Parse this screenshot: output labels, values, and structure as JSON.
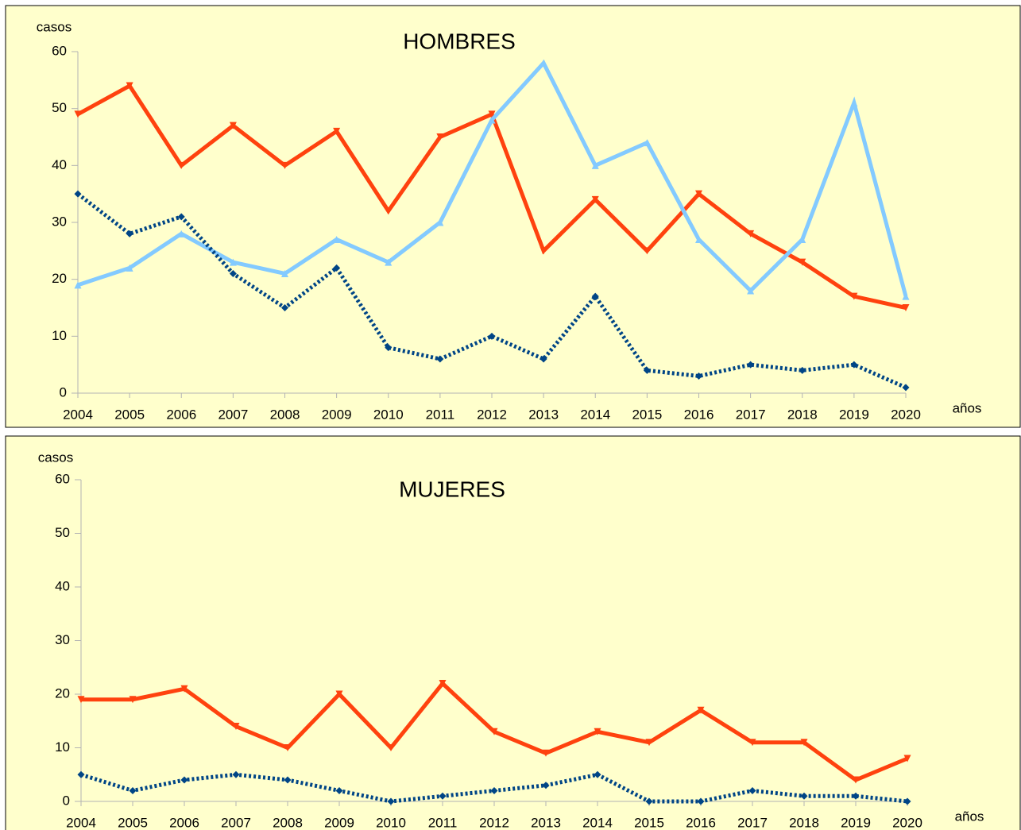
{
  "chart_data": [
    {
      "type": "line",
      "title": "HOMBRES",
      "y_label": "casos",
      "x_label": "años",
      "categories": [
        "2004",
        "2005",
        "2006",
        "2007",
        "2008",
        "2009",
        "2010",
        "2011",
        "2012",
        "2013",
        "2014",
        "2015",
        "2016",
        "2017",
        "2018",
        "2019",
        "2020"
      ],
      "series": [
        {
          "color": "#ff420e",
          "dash": "solid",
          "marker": "triangle-down",
          "values": [
            49,
            54,
            40,
            47,
            40,
            46,
            32,
            45,
            49,
            25,
            34,
            25,
            35,
            28,
            23,
            17,
            15
          ]
        },
        {
          "color": "#83caff",
          "dash": "solid",
          "marker": "triangle-up",
          "values": [
            19,
            22,
            28,
            23,
            21,
            27,
            23,
            30,
            48,
            58,
            40,
            44,
            27,
            18,
            27,
            51,
            17
          ]
        },
        {
          "color": "#004586",
          "dash": "dotted",
          "marker": "diamond",
          "values": [
            35,
            28,
            31,
            21,
            15,
            22,
            8,
            6,
            10,
            6,
            17,
            4,
            3,
            5,
            4,
            5,
            1
          ]
        }
      ],
      "ylim": [
        0,
        60
      ],
      "yticks": [
        0,
        10,
        20,
        30,
        40,
        50,
        60
      ],
      "grid": false,
      "background": "#ffffcc"
    },
    {
      "type": "line",
      "title": "MUJERES",
      "y_label": "casos",
      "x_label": "años",
      "categories": [
        "2004",
        "2005",
        "2006",
        "2007",
        "2008",
        "2009",
        "2010",
        "2011",
        "2012",
        "2013",
        "2014",
        "2015",
        "2016",
        "2017",
        "2018",
        "2019",
        "2020"
      ],
      "series": [
        {
          "color": "#ff420e",
          "dash": "solid",
          "marker": "triangle-down",
          "values": [
            19,
            19,
            21,
            14,
            10,
            20,
            10,
            22,
            13,
            9,
            13,
            11,
            17,
            11,
            11,
            4,
            8
          ]
        },
        {
          "color": "#004586",
          "dash": "dotted",
          "marker": "diamond",
          "values": [
            5,
            2,
            4,
            5,
            4,
            2,
            0,
            1,
            2,
            3,
            5,
            0,
            0,
            2,
            1,
            1,
            0
          ]
        }
      ],
      "ylim": [
        0,
        60
      ],
      "yticks": [
        0,
        10,
        20,
        30,
        40,
        50,
        60
      ],
      "grid": false,
      "background": "#ffffcc"
    }
  ]
}
